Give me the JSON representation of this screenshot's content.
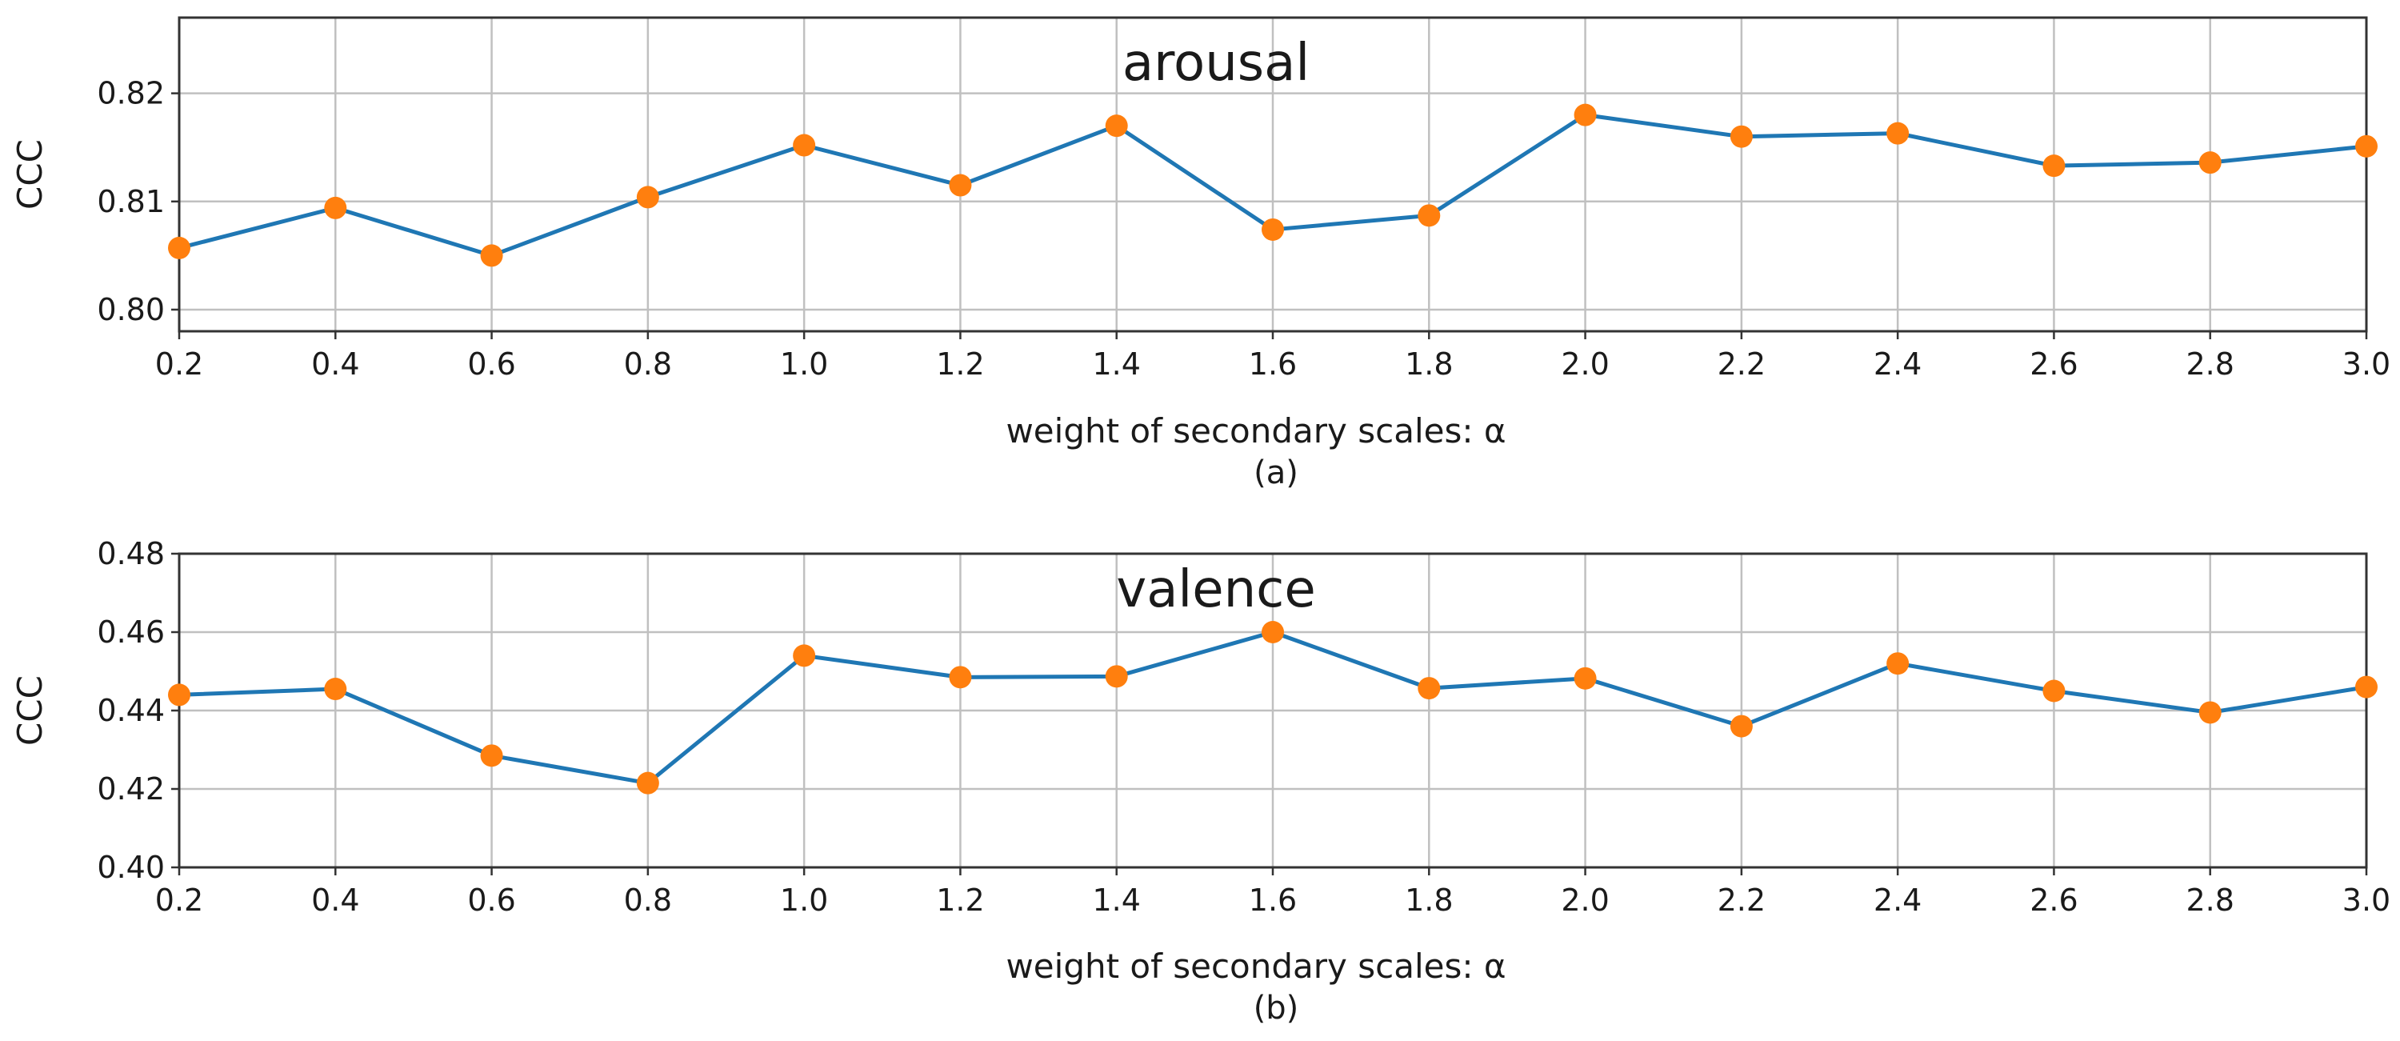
{
  "colors": {
    "line": "#1f77b4",
    "marker": "#ff7f0e",
    "grid": "#c0c0c0",
    "frame": "#333333"
  },
  "chart_data": [
    {
      "type": "line",
      "title": "arousal",
      "xlabel": "weight of secondary scales: α",
      "ylabel": "CCC",
      "caption": "(a)",
      "x": [
        0.2,
        0.4,
        0.6,
        0.8,
        1.0,
        1.2,
        1.4,
        1.6,
        1.8,
        2.0,
        2.2,
        2.4,
        2.6,
        2.8,
        3.0
      ],
      "values": [
        0.8057,
        0.8094,
        0.805,
        0.8104,
        0.8152,
        0.8115,
        0.817,
        0.8074,
        0.8087,
        0.818,
        0.816,
        0.8163,
        0.8133,
        0.8136,
        0.8151
      ],
      "xlim": [
        0.2,
        3.0
      ],
      "ylim": [
        0.798,
        0.827
      ],
      "xticks": [
        "0.2",
        "0.4",
        "0.6",
        "0.8",
        "1.0",
        "1.2",
        "1.4",
        "1.6",
        "1.8",
        "2.0",
        "2.2",
        "2.4",
        "2.6",
        "2.8",
        "3.0"
      ],
      "yticks": [
        0.8,
        0.81,
        0.82
      ],
      "ytick_labels": [
        "0.80",
        "0.81",
        "0.82"
      ],
      "grid": true
    },
    {
      "type": "line",
      "title": "valence",
      "xlabel": "weight of secondary scales: α",
      "ylabel": "CCC",
      "caption": "(b)",
      "x": [
        0.2,
        0.4,
        0.6,
        0.8,
        1.0,
        1.2,
        1.4,
        1.6,
        1.8,
        2.0,
        2.2,
        2.4,
        2.6,
        2.8,
        3.0
      ],
      "values": [
        0.444,
        0.4455,
        0.4285,
        0.4215,
        0.454,
        0.4485,
        0.4487,
        0.46,
        0.4457,
        0.4482,
        0.436,
        0.452,
        0.445,
        0.4395,
        0.446
      ],
      "xlim": [
        0.2,
        3.0
      ],
      "ylim": [
        0.4,
        0.48
      ],
      "xticks": [
        "0.2",
        "0.4",
        "0.6",
        "0.8",
        "1.0",
        "1.2",
        "1.4",
        "1.6",
        "1.8",
        "2.0",
        "2.2",
        "2.4",
        "2.6",
        "2.8",
        "3.0"
      ],
      "yticks": [
        0.4,
        0.42,
        0.44,
        0.46,
        0.48
      ],
      "ytick_labels": [
        "0.40",
        "0.42",
        "0.44",
        "0.46",
        "0.48"
      ],
      "grid": true
    }
  ]
}
